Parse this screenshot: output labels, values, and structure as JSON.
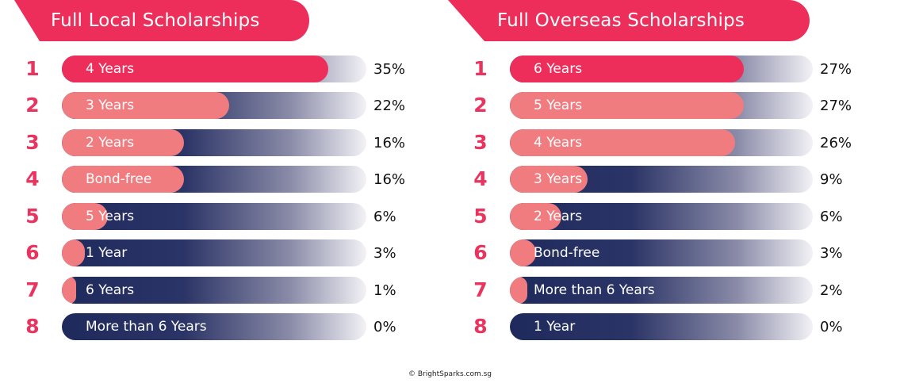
{
  "chart_data": [
    {
      "type": "bar",
      "title": "Full Local Scholarships",
      "xlim": [
        0,
        40
      ],
      "ranks": [
        "1",
        "2",
        "3",
        "4",
        "5",
        "6",
        "7",
        "8"
      ],
      "categories": [
        "4 Years",
        "3 Years",
        "2 Years",
        "Bond-free",
        "5 Years",
        "1 Year",
        "6 Years",
        "More than 6 Years"
      ],
      "values": [
        35,
        22,
        16,
        16,
        6,
        3,
        1,
        0
      ],
      "value_labels": [
        "35%",
        "22%",
        "16%",
        "16%",
        "6%",
        "3%",
        "1%",
        "0%"
      ]
    },
    {
      "type": "bar",
      "title": "Full Overseas Scholarships",
      "xlim": [
        0,
        35
      ],
      "ranks": [
        "1",
        "2",
        "3",
        "4",
        "5",
        "6",
        "7",
        "8"
      ],
      "categories": [
        "6 Years",
        "5 Years",
        "4 Years",
        "3 Years",
        "2 Years",
        "Bond-free",
        "More than 6 Years",
        "1 Year"
      ],
      "values": [
        27,
        27,
        26,
        9,
        6,
        3,
        2,
        0
      ],
      "value_labels": [
        "27%",
        "27%",
        "26%",
        "9%",
        "6%",
        "3%",
        "2%",
        "0%"
      ]
    }
  ],
  "colors": {
    "accent": "#ee2e5a",
    "fill": "#f07c80",
    "track_dark": "#1f2a5c",
    "track_light": "#f2f2f6"
  },
  "credit": "© BrightSparks.com.sg"
}
